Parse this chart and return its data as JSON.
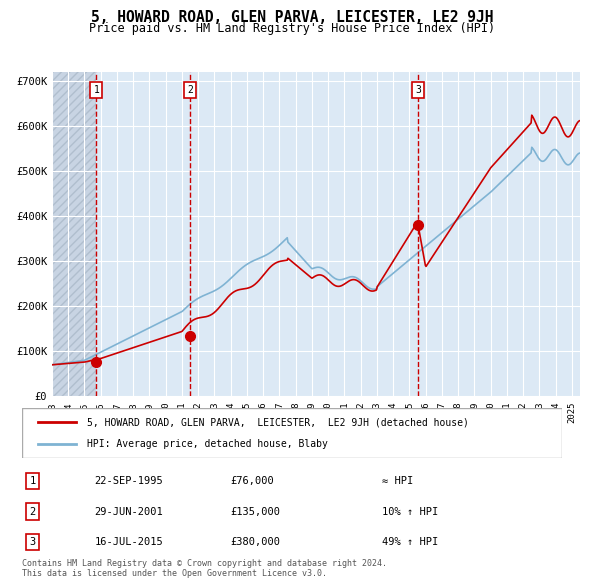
{
  "title": "5, HOWARD ROAD, GLEN PARVA, LEICESTER, LE2 9JH",
  "subtitle": "Price paid vs. HM Land Registry's House Price Index (HPI)",
  "xlim": [
    1993.0,
    2025.5
  ],
  "ylim": [
    0,
    720000
  ],
  "yticks": [
    0,
    100000,
    200000,
    300000,
    400000,
    500000,
    600000,
    700000
  ],
  "ytick_labels": [
    "£0",
    "£100K",
    "£200K",
    "£300K",
    "£400K",
    "£500K",
    "£600K",
    "£700K"
  ],
  "purchase_dates_decimal": [
    1995.73,
    2001.49,
    2015.54
  ],
  "purchase_prices": [
    76000,
    135000,
    380000
  ],
  "purchase_labels": [
    "1",
    "2",
    "3"
  ],
  "vline_color": "#cc0000",
  "vline_style": "dashed",
  "dot_color": "#cc0000",
  "hpi_line_color": "#7fb3d3",
  "price_line_color": "#cc0000",
  "bg_color": "#dce9f5",
  "plot_bg": "#dce9f5",
  "hatch_color": "#c0c8d8",
  "grid_color": "#ffffff",
  "legend_label_price": "5, HOWARD ROAD, GLEN PARVA,  LEICESTER,  LE2 9JH (detached house)",
  "legend_label_hpi": "HPI: Average price, detached house, Blaby",
  "table_rows": [
    [
      "1",
      "22-SEP-1995",
      "£76,000",
      "≈ HPI"
    ],
    [
      "2",
      "29-JUN-2001",
      "£135,000",
      "10% ↑ HPI"
    ],
    [
      "3",
      "16-JUL-2015",
      "£380,000",
      "49% ↑ HPI"
    ]
  ],
  "footnote": "Contains HM Land Registry data © Crown copyright and database right 2024.\nThis data is licensed under the Open Government Licence v3.0.",
  "xtick_years": [
    1993,
    1994,
    1995,
    1996,
    1997,
    1998,
    1999,
    2000,
    2001,
    2002,
    2003,
    2004,
    2005,
    2006,
    2007,
    2008,
    2009,
    2010,
    2011,
    2012,
    2013,
    2014,
    2015,
    2016,
    2017,
    2018,
    2019,
    2020,
    2021,
    2022,
    2023,
    2024,
    2025
  ]
}
